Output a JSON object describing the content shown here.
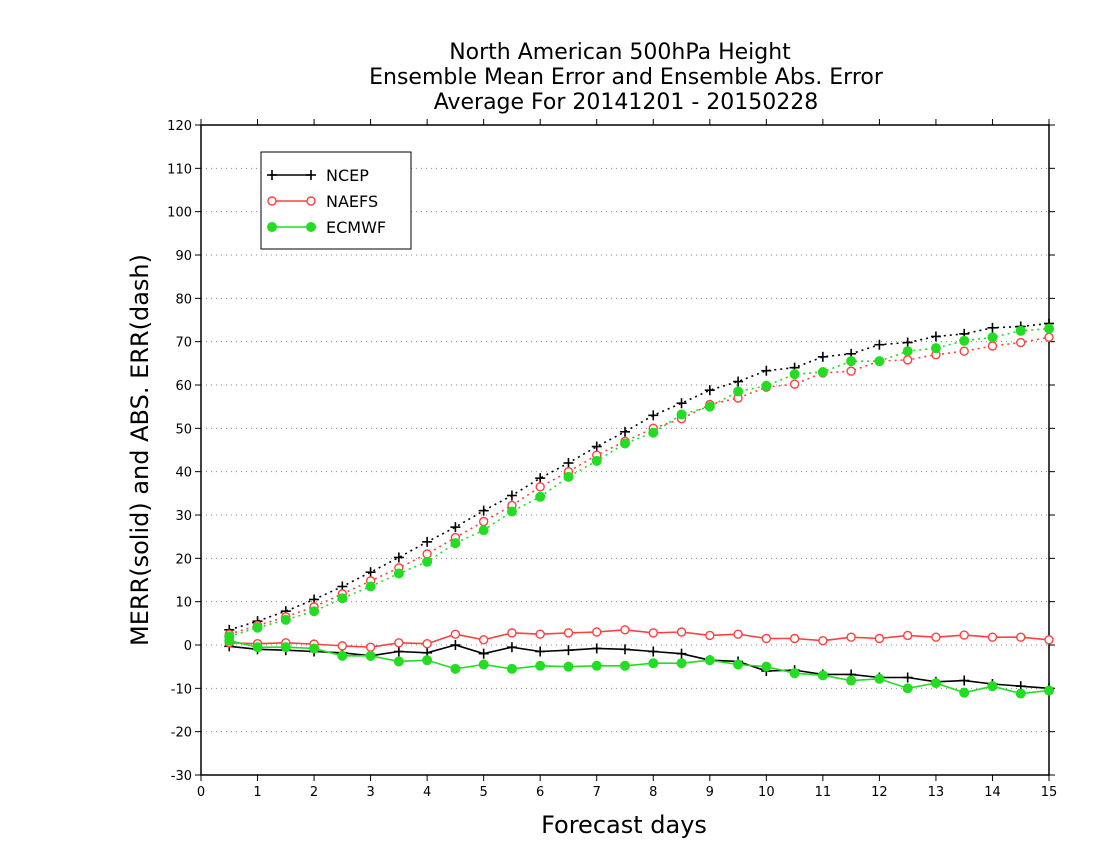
{
  "chart_data": {
    "type": "line",
    "title": "North American 500hPa Height",
    "subtitle": "Ensemble Mean Error and Ensemble Abs. Error",
    "subtitle2": "Average For 20141201 - 20150228",
    "xlabel": "Forecast days",
    "ylabel": "MERR(solid) and ABS. ERR(dash)",
    "xlim": [
      0,
      15
    ],
    "ylim": [
      -30,
      120
    ],
    "xticks": [
      "0",
      "1",
      "2",
      "3",
      "4",
      "5",
      "6",
      "7",
      "8",
      "9",
      "10",
      "11",
      "12",
      "13",
      "14",
      "15"
    ],
    "yticks": [
      "-30",
      "-20",
      "-10",
      "0",
      "10",
      "20",
      "30",
      "40",
      "50",
      "60",
      "70",
      "80",
      "90",
      "100",
      "110",
      "120"
    ],
    "grid": "horizontal dotted",
    "legend_position": "top-left",
    "x": [
      0.5,
      1,
      1.5,
      2,
      2.5,
      3,
      3.5,
      4,
      4.5,
      5,
      5.5,
      6,
      6.5,
      7,
      7.5,
      8,
      8.5,
      9,
      9.5,
      10,
      10.5,
      11,
      11.5,
      12,
      12.5,
      13,
      13.5,
      14,
      14.5,
      15
    ],
    "series": [
      {
        "name": "NCEP",
        "color": "#000000",
        "marker": "plus",
        "mean_error": [
          -0.3,
          -1.0,
          -1.2,
          -1.5,
          -1.8,
          -2.5,
          -1.5,
          -1.8,
          0.0,
          -2.0,
          -0.5,
          -1.5,
          -1.2,
          -0.8,
          -1.0,
          -1.5,
          -2.0,
          -3.5,
          -3.8,
          -6.0,
          -5.8,
          -6.8,
          -6.8,
          -7.5,
          -7.5,
          -8.5,
          -8.2,
          -9.0,
          -9.5,
          -10.0
        ],
        "abs_error": [
          3.5,
          5.5,
          7.8,
          10.5,
          13.5,
          16.8,
          20.2,
          23.8,
          27.2,
          31.0,
          34.5,
          38.5,
          42.0,
          45.8,
          49.2,
          53.0,
          55.8,
          58.8,
          60.8,
          63.3,
          64.0,
          66.5,
          67.2,
          69.3,
          69.8,
          71.2,
          71.8,
          73.2,
          73.5,
          74.2
        ]
      },
      {
        "name": "NAEFS",
        "color": "#ff4040",
        "marker": "open-circle",
        "mean_error": [
          0.5,
          0.3,
          0.5,
          0.2,
          -0.2,
          -0.5,
          0.5,
          0.3,
          2.5,
          1.2,
          2.8,
          2.5,
          2.8,
          3.0,
          3.5,
          2.8,
          3.0,
          2.2,
          2.5,
          1.5,
          1.5,
          1.0,
          1.8,
          1.5,
          2.2,
          1.8,
          2.3,
          1.8,
          1.8,
          1.2
        ],
        "abs_error": [
          2.5,
          4.5,
          6.5,
          8.8,
          11.8,
          14.8,
          17.8,
          21.0,
          24.8,
          28.5,
          32.2,
          36.5,
          40.0,
          43.8,
          47.0,
          50.0,
          52.2,
          55.5,
          57.0,
          59.5,
          60.2,
          62.8,
          63.2,
          65.5,
          65.8,
          67.0,
          67.8,
          69.0,
          69.8,
          71.0
        ]
      },
      {
        "name": "ECMWF",
        "color": "#22dd22",
        "marker": "filled-circle",
        "mean_error": [
          1.0,
          -0.5,
          -0.5,
          -0.8,
          -2.5,
          -2.5,
          -3.8,
          -3.5,
          -5.5,
          -4.5,
          -5.5,
          -4.8,
          -5.0,
          -4.8,
          -4.8,
          -4.2,
          -4.2,
          -3.5,
          -4.5,
          -5.0,
          -6.5,
          -7.0,
          -8.2,
          -7.8,
          -10.0,
          -8.8,
          -11.0,
          -9.5,
          -11.2,
          -10.5
        ],
        "abs_error": [
          2.0,
          4.0,
          5.8,
          7.8,
          10.8,
          13.5,
          16.5,
          19.2,
          23.5,
          26.5,
          30.8,
          34.2,
          38.8,
          42.5,
          46.5,
          49.0,
          53.2,
          55.0,
          58.5,
          59.8,
          62.5,
          63.0,
          65.5,
          65.5,
          67.8,
          68.5,
          70.2,
          71.0,
          72.5,
          73.0
        ]
      }
    ]
  }
}
